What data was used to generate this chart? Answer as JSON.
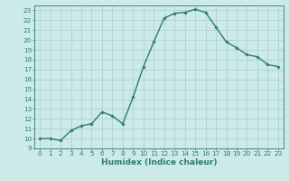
{
  "x": [
    0,
    1,
    2,
    3,
    4,
    5,
    6,
    7,
    8,
    9,
    10,
    11,
    12,
    13,
    14,
    15,
    16,
    17,
    18,
    19,
    20,
    21,
    22,
    23
  ],
  "y": [
    10.0,
    10.0,
    9.8,
    10.8,
    11.3,
    11.5,
    12.7,
    12.3,
    11.5,
    14.2,
    17.3,
    19.8,
    22.2,
    22.7,
    22.8,
    23.1,
    22.8,
    21.3,
    19.8,
    19.2,
    18.5,
    18.3,
    17.5,
    17.3
  ],
  "line_color": "#2d7d6e",
  "marker": "D",
  "marker_size": 1.8,
  "bg_color": "#cceae7",
  "grid_color": "#afd4d0",
  "xlabel": "Humidex (Indice chaleur)",
  "xlim": [
    -0.5,
    23.5
  ],
  "ylim": [
    9,
    23.5
  ],
  "yticks": [
    9,
    10,
    11,
    12,
    13,
    14,
    15,
    16,
    17,
    18,
    19,
    20,
    21,
    22,
    23
  ],
  "xticks": [
    0,
    1,
    2,
    3,
    4,
    5,
    6,
    7,
    8,
    9,
    10,
    11,
    12,
    13,
    14,
    15,
    16,
    17,
    18,
    19,
    20,
    21,
    22,
    23
  ],
  "tick_fontsize": 5.2,
  "label_fontsize": 6.5,
  "linewidth": 1.0
}
